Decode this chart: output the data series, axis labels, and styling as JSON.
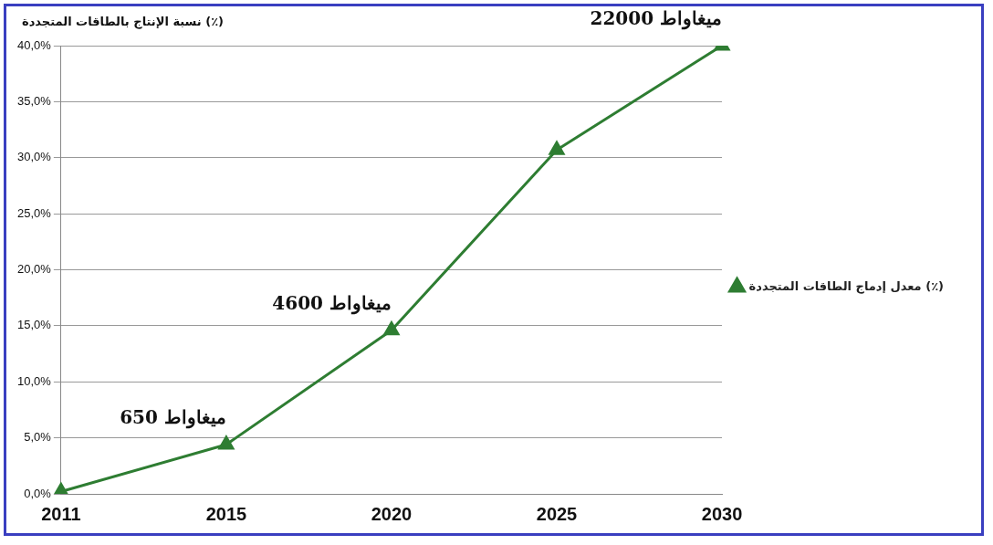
{
  "chart_data": {
    "type": "line",
    "ylabel": "نسبة الإنتاج بالطاقات المتجددة (٪)",
    "categories": [
      "2011",
      "2015",
      "2020",
      "2025",
      "2030"
    ],
    "series": [
      {
        "name": "معدل إدماج الطاقات المتجددة (٪)",
        "color": "#2e7d32",
        "values": [
          0.2,
          4.4,
          14.6,
          30.7,
          40
        ]
      }
    ],
    "ylim": [
      0,
      40
    ],
    "yticks": [
      {
        "value": 0,
        "label": "0,0%"
      },
      {
        "value": 5,
        "label": "5,0%"
      },
      {
        "value": 10,
        "label": "10,0%"
      },
      {
        "value": 15,
        "label": "15,0%"
      },
      {
        "value": 20,
        "label": "20,0%"
      },
      {
        "value": 25,
        "label": "25,0%"
      },
      {
        "value": 30,
        "label": "30,0%"
      },
      {
        "value": 35,
        "label": "35,0%"
      },
      {
        "value": 40,
        "label": "40,0%"
      }
    ],
    "grid": "y",
    "legend": "right",
    "marker": "triangle",
    "line_style": "solid",
    "annotations": [
      {
        "text": "650 ميغاواط",
        "x": "2015",
        "y": 4.4
      },
      {
        "text": "4600 ميغاواط",
        "x": "2020",
        "y": 14.6
      },
      {
        "text": "22000 ميغاواط",
        "x": "2030",
        "y": 40
      }
    ]
  }
}
